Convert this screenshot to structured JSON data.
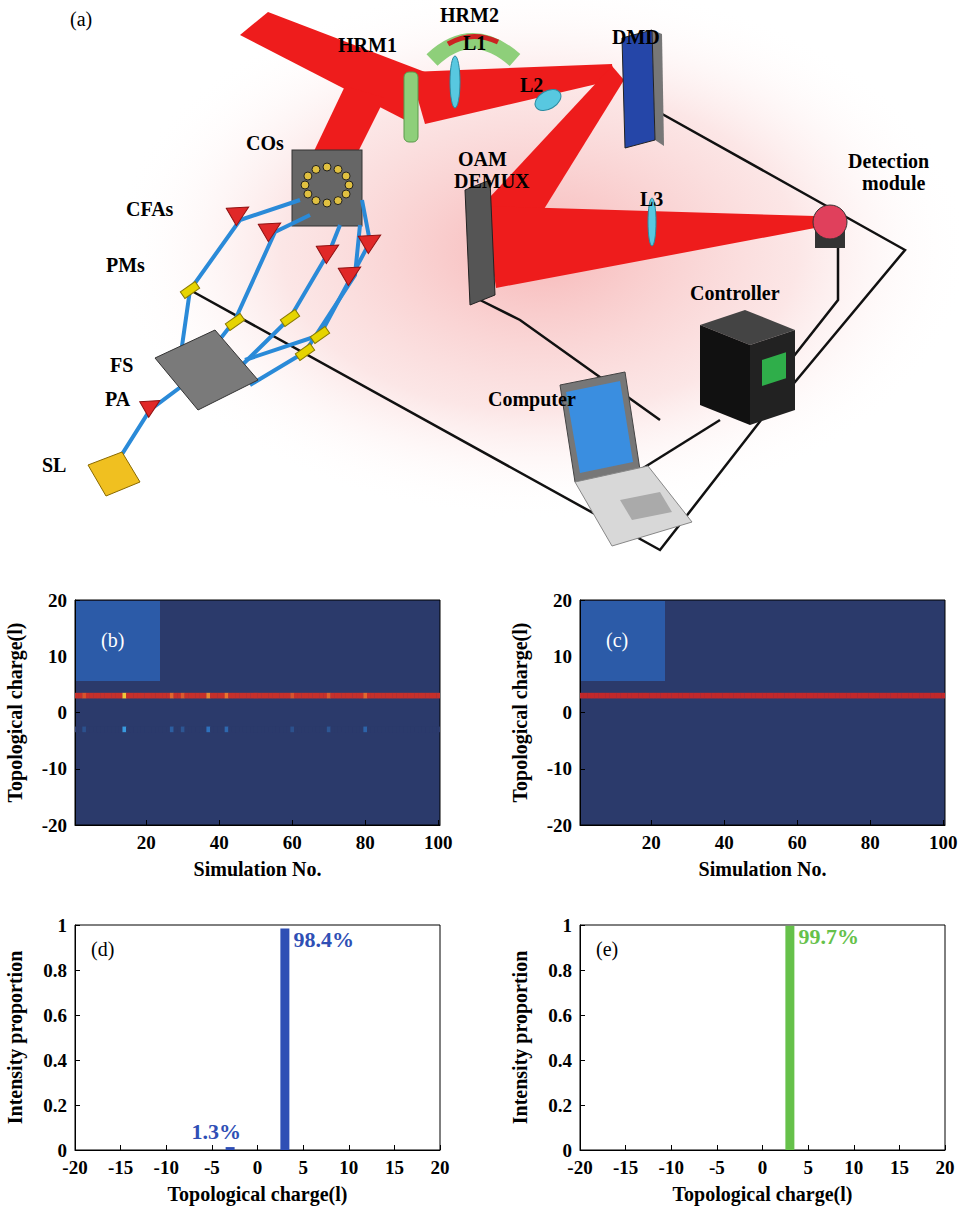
{
  "diagram": {
    "panel": "(a)",
    "labels": [
      "HRM1",
      "HRM2",
      "L1",
      "DMD",
      "COs",
      "CFAs",
      "PMs",
      "FS",
      "PA",
      "SL",
      "OAM DEMUX",
      "L2",
      "L3",
      "Detection module",
      "Controller",
      "Computer"
    ]
  },
  "chart_data": [
    {
      "type": "heatmap",
      "panel": "(b)",
      "x_label": "Simulation No.",
      "y_label": "Topological charge(l)",
      "xlim": [
        0.5,
        100.5
      ],
      "xticks": [
        20,
        40,
        60,
        80,
        100
      ],
      "ylim": [
        -20,
        20
      ],
      "yticks": [
        -20,
        -10,
        0,
        10,
        20
      ],
      "value_range": [
        0,
        1
      ],
      "x": [
        1,
        2,
        3,
        4,
        5,
        6,
        7,
        8,
        9,
        10,
        11,
        12,
        13,
        14,
        15,
        16,
        17,
        18,
        19,
        20,
        21,
        22,
        23,
        24,
        25,
        26,
        27,
        28,
        29,
        30,
        31,
        32,
        33,
        34,
        35,
        36,
        37,
        38,
        39,
        40,
        41,
        42,
        43,
        44,
        45,
        46,
        47,
        48,
        49,
        50,
        51,
        52,
        53,
        54,
        55,
        56,
        57,
        58,
        59,
        60,
        61,
        62,
        63,
        64,
        65,
        66,
        67,
        68,
        69,
        70,
        71,
        72,
        73,
        74,
        75,
        76,
        77,
        78,
        79,
        80,
        81,
        82,
        83,
        84,
        85,
        86,
        87,
        88,
        89,
        90,
        91,
        92,
        93,
        94,
        95,
        96,
        97,
        98,
        99,
        100
      ],
      "rows": [
        {
          "l": 3,
          "values": [
            0.984,
            0.984,
            0.93,
            0.984,
            0.984,
            0.984,
            0.984,
            0.984,
            0.984,
            0.984,
            0.984,
            0.984,
            0.984,
            0.75,
            0.984,
            0.984,
            0.984,
            0.984,
            0.984,
            0.984,
            0.984,
            0.984,
            0.984,
            0.984,
            0.984,
            0.984,
            0.9,
            0.984,
            0.984,
            0.92,
            0.984,
            0.984,
            0.984,
            0.984,
            0.984,
            0.984,
            0.85,
            0.984,
            0.984,
            0.984,
            0.984,
            0.88,
            0.984,
            0.984,
            0.984,
            0.984,
            0.984,
            0.984,
            0.984,
            0.984,
            0.984,
            0.984,
            0.984,
            0.984,
            0.984,
            0.984,
            0.984,
            0.984,
            0.984,
            0.93,
            0.984,
            0.984,
            0.984,
            0.984,
            0.984,
            0.984,
            0.984,
            0.984,
            0.984,
            0.92,
            0.984,
            0.984,
            0.984,
            0.984,
            0.984,
            0.984,
            0.984,
            0.984,
            0.984,
            0.9,
            0.984,
            0.984,
            0.984,
            0.984,
            0.984,
            0.984,
            0.984,
            0.984,
            0.984,
            0.984,
            0.984,
            0.984,
            0.984,
            0.984,
            0.984,
            0.984,
            0.984,
            0.984,
            0.984,
            0.984
          ]
        },
        {
          "l": -3,
          "values": [
            0,
            0,
            0.05,
            0,
            0,
            0,
            0,
            0,
            0,
            0,
            0,
            0,
            0,
            0.22,
            0,
            0,
            0,
            0,
            0,
            0,
            0,
            0,
            0,
            0,
            0,
            0,
            0.08,
            0,
            0,
            0.06,
            0,
            0,
            0,
            0,
            0,
            0,
            0.12,
            0,
            0,
            0,
            0,
            0.1,
            0,
            0,
            0,
            0,
            0,
            0,
            0,
            0,
            0,
            0,
            0,
            0,
            0,
            0,
            0,
            0,
            0,
            0.05,
            0,
            0,
            0,
            0,
            0,
            0,
            0,
            0,
            0,
            0.06,
            0,
            0,
            0,
            0,
            0,
            0,
            0,
            0,
            0,
            0.09,
            0,
            0,
            0,
            0,
            0,
            0,
            0,
            0,
            0,
            0,
            0,
            0,
            0,
            0,
            0,
            0,
            0,
            0,
            0,
            0
          ]
        }
      ]
    },
    {
      "type": "heatmap",
      "panel": "(c)",
      "x_label": "Simulation No.",
      "y_label": "Topological charge(l)",
      "xlim": [
        0.5,
        100.5
      ],
      "xticks": [
        20,
        40,
        60,
        80,
        100
      ],
      "ylim": [
        -20,
        20
      ],
      "yticks": [
        -20,
        -10,
        0,
        10,
        20
      ],
      "value_range": [
        0,
        1
      ],
      "x": [
        1,
        2,
        3,
        4,
        5,
        6,
        7,
        8,
        9,
        10,
        11,
        12,
        13,
        14,
        15,
        16,
        17,
        18,
        19,
        20,
        21,
        22,
        23,
        24,
        25,
        26,
        27,
        28,
        29,
        30,
        31,
        32,
        33,
        34,
        35,
        36,
        37,
        38,
        39,
        40,
        41,
        42,
        43,
        44,
        45,
        46,
        47,
        48,
        49,
        50,
        51,
        52,
        53,
        54,
        55,
        56,
        57,
        58,
        59,
        60,
        61,
        62,
        63,
        64,
        65,
        66,
        67,
        68,
        69,
        70,
        71,
        72,
        73,
        74,
        75,
        76,
        77,
        78,
        79,
        80,
        81,
        82,
        83,
        84,
        85,
        86,
        87,
        88,
        89,
        90,
        91,
        92,
        93,
        94,
        95,
        96,
        97,
        98,
        99,
        100
      ],
      "rows": [
        {
          "l": 3,
          "values": [
            0.997,
            0.997,
            0.997,
            0.997,
            0.997,
            0.997,
            0.997,
            0.997,
            0.997,
            0.997,
            0.997,
            0.997,
            0.997,
            0.997,
            0.997,
            0.997,
            0.997,
            0.997,
            0.997,
            0.997,
            0.997,
            0.997,
            0.997,
            0.997,
            0.997,
            0.997,
            0.997,
            0.997,
            0.997,
            0.997,
            0.997,
            0.997,
            0.997,
            0.997,
            0.997,
            0.997,
            0.997,
            0.997,
            0.997,
            0.997,
            0.997,
            0.997,
            0.997,
            0.997,
            0.997,
            0.997,
            0.997,
            0.997,
            0.997,
            0.997,
            0.997,
            0.997,
            0.997,
            0.997,
            0.997,
            0.997,
            0.997,
            0.997,
            0.997,
            0.997,
            0.997,
            0.997,
            0.997,
            0.997,
            0.997,
            0.997,
            0.997,
            0.997,
            0.997,
            0.997,
            0.997,
            0.997,
            0.997,
            0.997,
            0.997,
            0.997,
            0.997,
            0.997,
            0.997,
            0.997,
            0.997,
            0.997,
            0.997,
            0.997,
            0.997,
            0.997,
            0.997,
            0.997,
            0.997,
            0.997,
            0.997,
            0.997,
            0.997,
            0.997,
            0.997,
            0.997,
            0.997,
            0.997,
            0.997,
            0.997
          ]
        }
      ]
    },
    {
      "type": "bar",
      "panel": "(d)",
      "x_label": "Topological charge(l)",
      "y_label": "Intensity proportion",
      "x": [
        -3,
        3
      ],
      "values": [
        0.013,
        0.984
      ],
      "value_labels": [
        "1.3%",
        "98.4%"
      ],
      "data_labels": true,
      "color": "#2f4fb5",
      "xlim": [
        -20,
        20
      ],
      "xticks": [
        -20,
        -15,
        -10,
        -5,
        0,
        5,
        10,
        15,
        20
      ],
      "ylim": [
        0,
        1
      ],
      "yticks": [
        0,
        0.2,
        0.4,
        0.6,
        0.8,
        1
      ]
    },
    {
      "type": "bar",
      "panel": "(e)",
      "x_label": "Topological charge(l)",
      "y_label": "Intensity proportion",
      "x": [
        3
      ],
      "values": [
        0.997
      ],
      "value_labels": [
        "99.7%"
      ],
      "data_labels": true,
      "color": "#66c14a",
      "xlim": [
        -20,
        20
      ],
      "xticks": [
        -20,
        -15,
        -10,
        -5,
        0,
        5,
        10,
        15,
        20
      ],
      "ylim": [
        0,
        1
      ],
      "yticks": [
        0,
        0.2,
        0.4,
        0.6,
        0.8,
        1
      ]
    }
  ]
}
